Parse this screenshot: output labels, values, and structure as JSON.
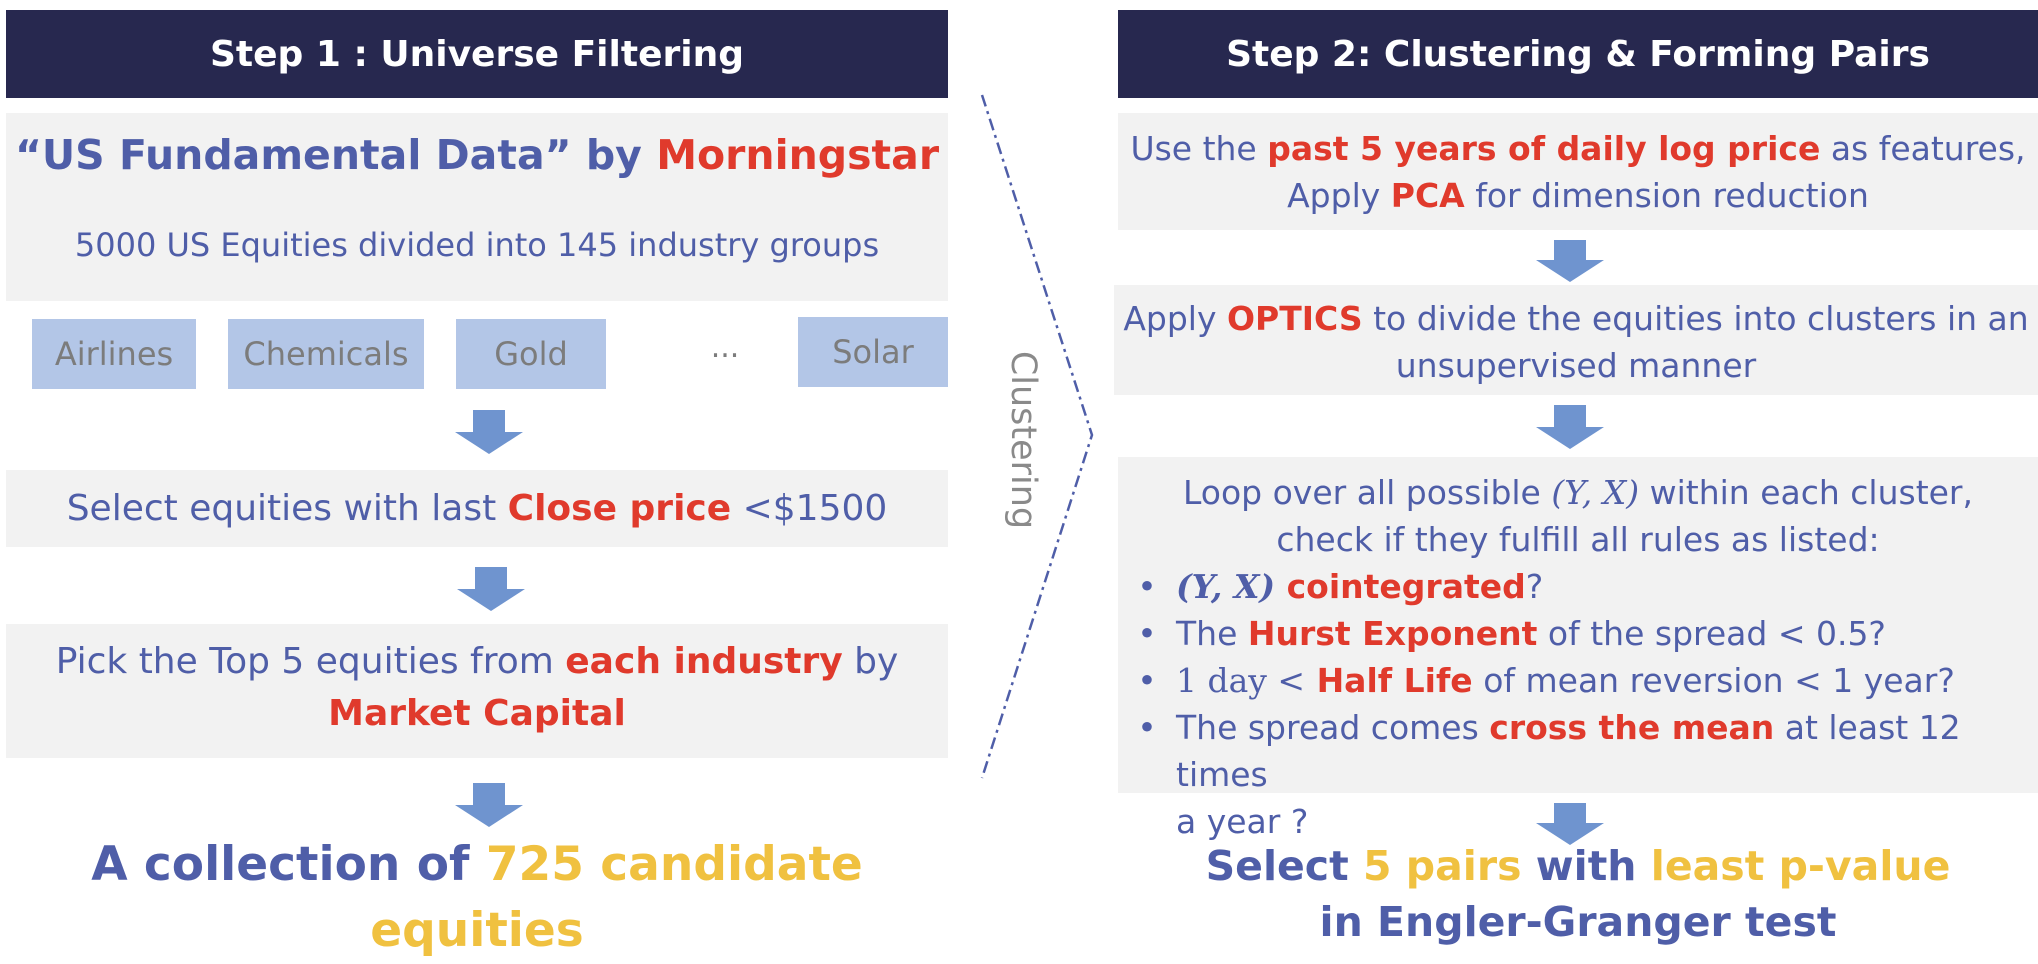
{
  "step1": {
    "header": "Step 1 : Universe Filtering",
    "source": {
      "title_part1": "“US Fundamental Data” by ",
      "title_part2": "Morningstar",
      "subtitle": "5000 US Equities divided into 145 industry groups"
    },
    "industries": [
      "Airlines",
      "Chemicals",
      "Gold",
      "...",
      "Solar"
    ],
    "filter1": {
      "part1": "Select equities with last ",
      "part2": "Close price",
      "part3": " <$1500"
    },
    "filter2": {
      "part1": "Pick the Top 5 equities from ",
      "part2": "each industry",
      "part3": " by",
      "part4": "Market Capital"
    },
    "result": {
      "part1": "A collection of ",
      "part2": "725 candidate equities"
    }
  },
  "connector": {
    "label": "Clustering"
  },
  "step2": {
    "header": "Step 2: Clustering & Forming Pairs",
    "features": {
      "part1": "Use the ",
      "part2": "past 5 years of daily log price",
      "part3": " as features,",
      "part4": "Apply ",
      "part5": "PCA",
      "part6": " for dimension reduction"
    },
    "optics": {
      "part1": "Apply ",
      "part2": "OPTICS",
      "part3": " to divide the equities into clusters in an",
      "part4": "unsupervised manner"
    },
    "rules": {
      "intro1_a": "Loop over all possible ",
      "intro1_math": "(Y, X)",
      "intro1_b": " within each cluster,",
      "intro2": "check if they fulfill all rules as listed:",
      "bullet": "•",
      "rule1_math": "(Y, X)",
      "rule1_red": " cointegrated",
      "rule1_end": "?",
      "rule2_a": "The ",
      "rule2_red": "Hurst Exponent",
      "rule2_b": " of the spread < 0.5?",
      "rule3_math": "1 day <",
      "rule3_red": " Half Life",
      "rule3_b": " of mean reversion < 1 year?",
      "rule4_a": "The spread comes ",
      "rule4_red": "cross the mean",
      "rule4_b": " at least 12 times",
      "rule4_c": "a year ?"
    },
    "result": {
      "part1": "Select ",
      "part2": "5 pairs",
      "part3": " with ",
      "part4": "least p-value",
      "part5": "in Engler-Granger test"
    }
  },
  "colors": {
    "header_bg": "#27284f",
    "text_blue": "#4f5ea8",
    "highlight_red": "#e03a2c",
    "highlight_gold": "#f0c140",
    "chip_bg": "#b3c6e7",
    "arrow": "#6f94cf",
    "box_bg": "#f2f2f2"
  }
}
